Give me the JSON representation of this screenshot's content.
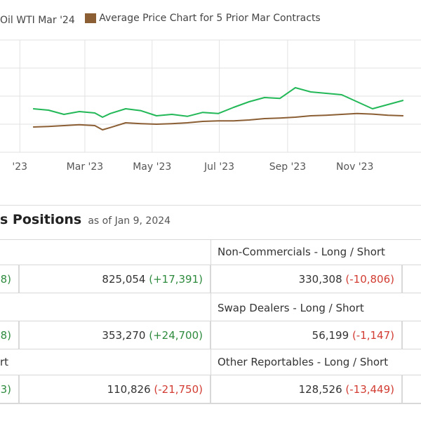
{
  "legend": [
    {
      "label": "Oil WTI Mar '24",
      "color": "#22b857"
    },
    {
      "label": "Average Price Chart for 5 Prior Mar Contracts",
      "color": "#8b5e34"
    }
  ],
  "chart_data": {
    "type": "line",
    "x_tick_labels": [
      "'23",
      "Mar '23",
      "May '23",
      "Jul '23",
      "Sep '23",
      "Nov '23"
    ],
    "grid": true,
    "series": [
      {
        "name": "Oil WTI Mar '24",
        "color": "#22b857",
        "x": [
          "2023-01-13",
          "2023-01-27",
          "2023-02-10",
          "2023-02-24",
          "2023-03-10",
          "2023-03-17",
          "2023-03-24",
          "2023-04-07",
          "2023-04-21",
          "2023-05-05",
          "2023-05-19",
          "2023-06-02",
          "2023-06-16",
          "2023-06-30",
          "2023-07-14",
          "2023-07-28",
          "2023-08-11",
          "2023-08-25",
          "2023-09-08",
          "2023-09-22",
          "2023-10-06",
          "2023-10-20",
          "2023-11-03",
          "2023-11-17",
          "2023-12-01",
          "2023-12-15"
        ],
        "values": [
          1.55,
          1.5,
          1.35,
          1.45,
          1.4,
          1.25,
          1.38,
          1.55,
          1.48,
          1.3,
          1.35,
          1.28,
          1.42,
          1.38,
          1.6,
          1.8,
          1.95,
          1.92,
          2.3,
          2.15,
          2.1,
          2.05,
          1.8,
          1.55,
          1.7,
          1.85
        ]
      },
      {
        "name": "Average Price Chart for 5 Prior Mar Contracts",
        "color": "#8b5e34",
        "x": [
          "2023-01-13",
          "2023-01-27",
          "2023-02-10",
          "2023-02-24",
          "2023-03-10",
          "2023-03-17",
          "2023-03-24",
          "2023-04-07",
          "2023-04-21",
          "2023-05-05",
          "2023-05-19",
          "2023-06-02",
          "2023-06-16",
          "2023-06-30",
          "2023-07-14",
          "2023-07-28",
          "2023-08-11",
          "2023-08-25",
          "2023-09-08",
          "2023-09-22",
          "2023-10-06",
          "2023-10-20",
          "2023-11-03",
          "2023-11-17",
          "2023-12-01",
          "2023-12-15"
        ],
        "values": [
          0.9,
          0.92,
          0.95,
          0.98,
          0.95,
          0.8,
          0.88,
          1.05,
          1.02,
          1.0,
          1.02,
          1.05,
          1.1,
          1.12,
          1.12,
          1.15,
          1.2,
          1.22,
          1.25,
          1.3,
          1.32,
          1.35,
          1.38,
          1.36,
          1.32,
          1.3
        ]
      }
    ]
  },
  "positions": {
    "title": "s Positions",
    "as_of": "as of Jan 9, 2024",
    "headers": {
      "col0": [
        "",
        "",
        "rt"
      ],
      "col2": [
        "Non-Commercials - Long / Short",
        "Swap Dealers - Long / Short",
        "Other Reportables - Long / Short"
      ]
    },
    "rows": [
      {
        "c0_change": "8)",
        "c1_value": "825,054",
        "c1_change": "(+17,391)",
        "c1_sign": "pos",
        "c2_value": "330,308",
        "c2_change": "(-10,806)",
        "c2_sign": "neg"
      },
      {
        "c0_change": "8)",
        "c1_value": "353,270",
        "c1_change": "(+24,700)",
        "c1_sign": "pos",
        "c2_value": "56,199",
        "c2_change": "(-1,147)",
        "c2_sign": "neg"
      },
      {
        "c0_change": "3)",
        "c1_value": "110,826",
        "c1_change": "(-21,750)",
        "c1_sign": "neg",
        "c2_value": "128,526",
        "c2_change": "(-13,449)",
        "c2_sign": "neg"
      }
    ]
  }
}
